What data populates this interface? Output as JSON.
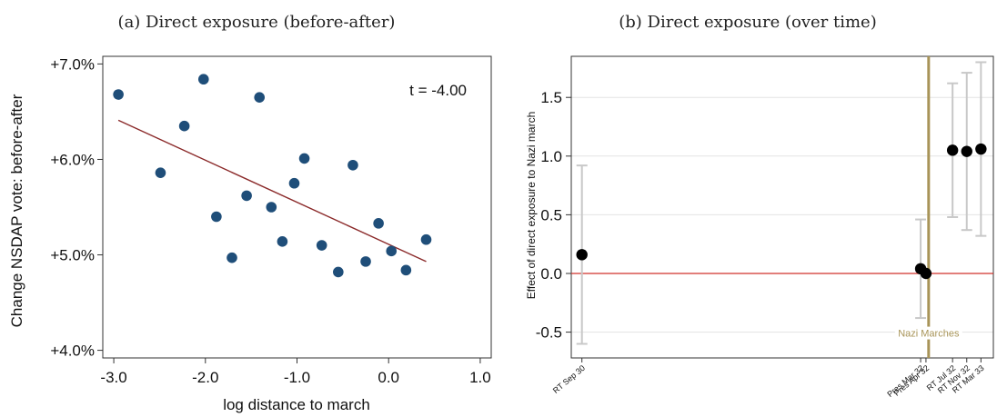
{
  "chart_data": [
    {
      "type": "scatter",
      "title": "(a) Direct exposure (before-after)",
      "xlabel": "log distance to march",
      "ylabel": "Change NSDAP vote: before-after",
      "annotation": "t = -4.00",
      "xlim": [
        -3.0,
        1.0
      ],
      "ylim": [
        4.0,
        7.0
      ],
      "xticks": [
        -3.0,
        -2.0,
        -1.0,
        0.0,
        1.0
      ],
      "xtick_labels": [
        "-3.0",
        "-2.0",
        "-1.0",
        "0.0",
        "1.0"
      ],
      "yticks": [
        4.0,
        5.0,
        6.0,
        7.0
      ],
      "ytick_labels": [
        "+4.0%",
        "+5.0%",
        "+6.0%",
        "+7.0%"
      ],
      "grid": false,
      "points": [
        {
          "x": -2.95,
          "y": 6.68
        },
        {
          "x": -2.49,
          "y": 5.86
        },
        {
          "x": -2.23,
          "y": 6.35
        },
        {
          "x": -2.02,
          "y": 6.84
        },
        {
          "x": -1.88,
          "y": 5.4
        },
        {
          "x": -1.71,
          "y": 4.97
        },
        {
          "x": -1.55,
          "y": 5.62
        },
        {
          "x": -1.41,
          "y": 6.65
        },
        {
          "x": -1.28,
          "y": 5.5
        },
        {
          "x": -1.16,
          "y": 5.14
        },
        {
          "x": -1.03,
          "y": 5.75
        },
        {
          "x": -0.92,
          "y": 6.01
        },
        {
          "x": -0.73,
          "y": 5.1
        },
        {
          "x": -0.55,
          "y": 4.82
        },
        {
          "x": -0.39,
          "y": 5.94
        },
        {
          "x": -0.25,
          "y": 4.93
        },
        {
          "x": -0.11,
          "y": 5.33
        },
        {
          "x": 0.03,
          "y": 5.04
        },
        {
          "x": 0.19,
          "y": 4.84
        },
        {
          "x": 0.41,
          "y": 5.16
        }
      ],
      "fit_line": {
        "x": [
          -2.95,
          0.41
        ],
        "y": [
          6.41,
          4.93
        ]
      },
      "colors": {
        "points": "#1f4e79",
        "fit_line": "#8b2a2a"
      }
    },
    {
      "type": "scatter",
      "title": "(b) Direct exposure (over time)",
      "xlabel": "",
      "ylabel": "Effect of direct exposure to Nazi march",
      "ylim": [
        -0.72,
        1.85
      ],
      "yticks": [
        -0.5,
        0.0,
        0.5,
        1.0,
        1.5
      ],
      "ytick_labels": [
        "-0.5",
        "0.0",
        "0.5",
        "1.0",
        "1.5"
      ],
      "grid": true,
      "categories": [
        "RT Sep 30",
        "Pres Mar 32",
        "Pres Apr 32",
        "RT Jul 32",
        "RT Nov 32",
        "RT Mar 33"
      ],
      "x_positions": [
        0.0,
        19.1,
        19.4,
        20.9,
        21.7,
        22.5
      ],
      "xlim": [
        -0.6,
        23.2
      ],
      "estimates": [
        {
          "label": "RT Sep 30",
          "est": 0.16,
          "lo": -0.6,
          "hi": 0.92
        },
        {
          "label": "Pres Mar 32",
          "est": 0.04,
          "lo": -0.38,
          "hi": 0.46
        },
        {
          "label": "Pres Apr 32",
          "est": 0.0,
          "lo": null,
          "hi": null
        },
        {
          "label": "RT Jul 32",
          "est": 1.05,
          "lo": 0.48,
          "hi": 1.62
        },
        {
          "label": "RT Nov 32",
          "est": 1.04,
          "lo": 0.37,
          "hi": 1.71
        },
        {
          "label": "RT Mar 33",
          "est": 1.06,
          "lo": 0.32,
          "hi": 1.8
        }
      ],
      "reference_line": {
        "y": 0.0
      },
      "event_line": {
        "x": 19.55,
        "label": "Nazi Marches"
      },
      "colors": {
        "points": "#000000",
        "ci": "#c8c8c8",
        "reference": "#d0302a",
        "event": "#a89458",
        "event_label": "#a89458",
        "grid": "#e3e3e3"
      }
    }
  ]
}
